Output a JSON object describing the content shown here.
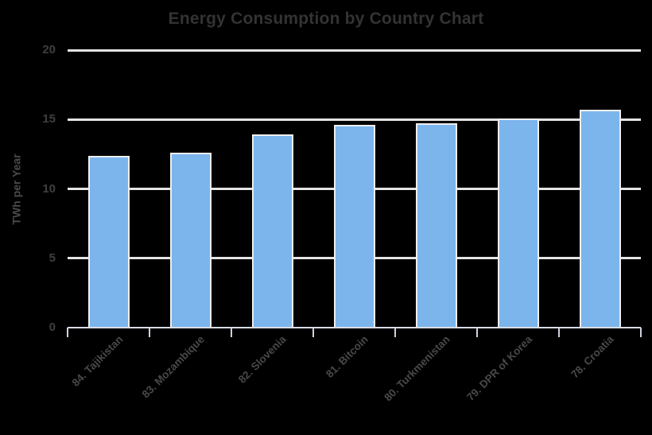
{
  "chart_data": {
    "type": "bar",
    "title": "Energy Consumption by Country Chart",
    "categories": [
      "84. Tajikistan",
      "83. Mozambique",
      "82. Slovenia",
      "81. Bitcoin",
      "80. Turkmenistan",
      "79. DPR of Korea",
      "78. Croatia"
    ],
    "values": [
      12.4,
      12.6,
      13.9,
      14.6,
      14.7,
      15.1,
      15.7
    ],
    "xlabel": "",
    "ylabel": "TWh per Year",
    "ylim": [
      0,
      20
    ],
    "yticks": [
      0,
      5,
      10,
      15,
      20
    ],
    "grid": true,
    "legend": "none"
  },
  "colors": {
    "background": "#000000",
    "bar_fill": "#7cb5ec",
    "bar_border": "#eeeeee",
    "gridline": "#e4e4e4",
    "axis_line": "#d9dce8",
    "title_text": "#333333",
    "ytick_text": "#3f3f3f",
    "xtick_text": "#49494d",
    "ylabel_text": "#4a4a4a"
  }
}
